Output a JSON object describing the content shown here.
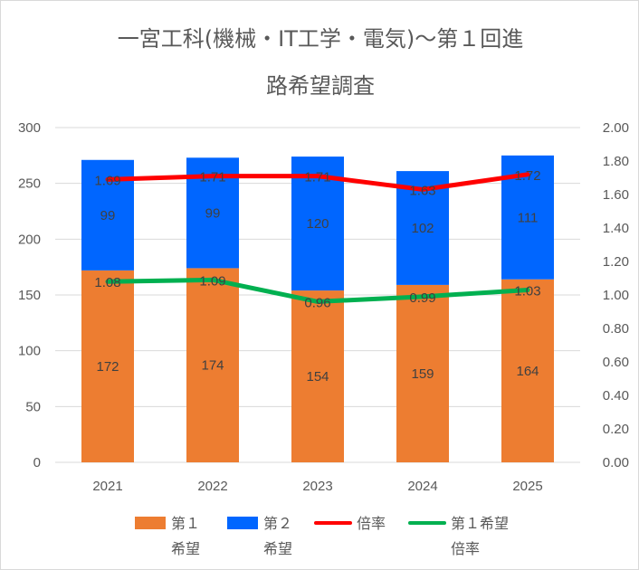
{
  "title_line1": "一宮工科(機械・IT工学・電気)～第１回進",
  "title_line2": "路希望調査",
  "chart_data": {
    "type": "bar",
    "stacked": true,
    "title": "一宮工科(機械・IT工学・電気)～第１回進路希望調査",
    "categories": [
      "2021",
      "2022",
      "2023",
      "2024",
      "2025"
    ],
    "y_left": {
      "min": 0,
      "max": 300,
      "ticks": [
        "0",
        "50",
        "100",
        "150",
        "200",
        "250",
        "300"
      ]
    },
    "y_right": {
      "min": 0,
      "max": 2,
      "ticks": [
        "0.00",
        "0.20",
        "0.40",
        "0.60",
        "0.80",
        "1.00",
        "1.20",
        "1.40",
        "1.60",
        "1.80",
        "2.00"
      ]
    },
    "grid": true,
    "legend_position": "bottom",
    "series": [
      {
        "name": "第１希望",
        "legend_lines": [
          "第１",
          "希望"
        ],
        "type": "bar",
        "axis": "left",
        "color": "#ED7D31",
        "values": [
          172,
          174,
          154,
          159,
          164
        ],
        "labels": [
          "172",
          "174",
          "154",
          "159",
          "164"
        ],
        "label_color": "#404040"
      },
      {
        "name": "第２希望",
        "legend_lines": [
          "第２",
          "希望"
        ],
        "type": "bar",
        "axis": "left",
        "color": "#0066FF",
        "values": [
          99,
          99,
          120,
          102,
          111
        ],
        "labels": [
          "99",
          "99",
          "120",
          "102",
          "111"
        ],
        "label_color": "#404040"
      },
      {
        "name": "倍率",
        "legend_lines": [
          "倍率"
        ],
        "type": "line",
        "axis": "right",
        "color": "#FF0000",
        "values": [
          1.69,
          1.71,
          1.71,
          1.63,
          1.72
        ],
        "labels": [
          "1.69",
          "1.71",
          "1.71",
          "1.63",
          "1.72"
        ],
        "label_color": "#404040"
      },
      {
        "name": "第１希望倍率",
        "legend_lines": [
          "第１希望",
          "倍率"
        ],
        "type": "line",
        "axis": "right",
        "color": "#00B050",
        "values": [
          1.08,
          1.09,
          0.96,
          0.99,
          1.03
        ],
        "labels": [
          "1.08",
          "1.09",
          "0.96",
          "0.99",
          "1.03"
        ],
        "label_color": "#FFFF00"
      }
    ]
  }
}
